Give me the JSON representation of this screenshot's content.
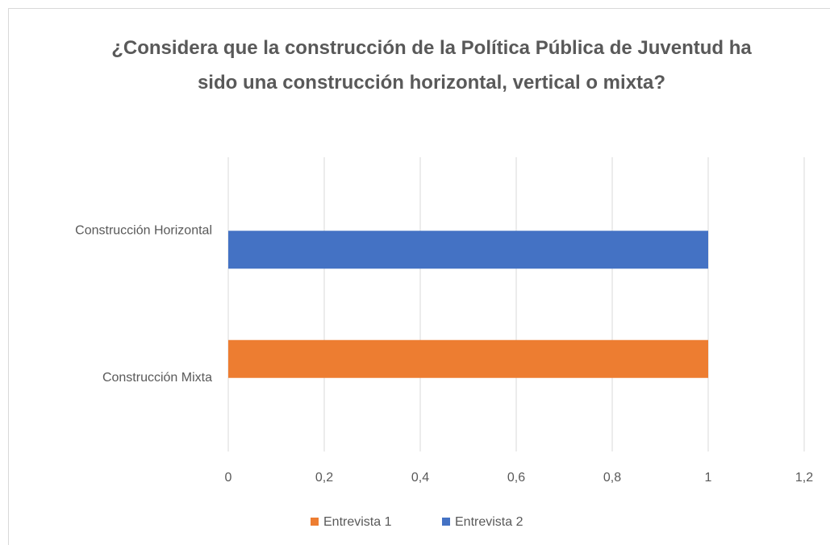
{
  "chart_data": {
    "type": "bar",
    "orientation": "horizontal",
    "title": "¿Considera que la construcción de la Política Pública de Juventud ha sido una construcción horizontal, vertical o mixta?",
    "categories": [
      "Construcción Horizontal",
      "Construcción Mixta"
    ],
    "series": [
      {
        "name": "Entrevista 1",
        "color": "#ed7d31",
        "values": [
          null,
          1
        ]
      },
      {
        "name": "Entrevista 2",
        "color": "#4472c4",
        "values": [
          1,
          null
        ]
      }
    ],
    "xlim": [
      0,
      1.2
    ],
    "xticks": [
      0,
      {
        "value": 0.2,
        "label": "0,2"
      },
      {
        "value": 0.4,
        "label": "0,4"
      },
      {
        "value": 0.6,
        "label": "0,6"
      },
      {
        "value": 0.8,
        "label": "0,8"
      },
      1,
      {
        "value": 1.2,
        "label": "1,2"
      }
    ],
    "grid": true,
    "legend": "bottom"
  }
}
